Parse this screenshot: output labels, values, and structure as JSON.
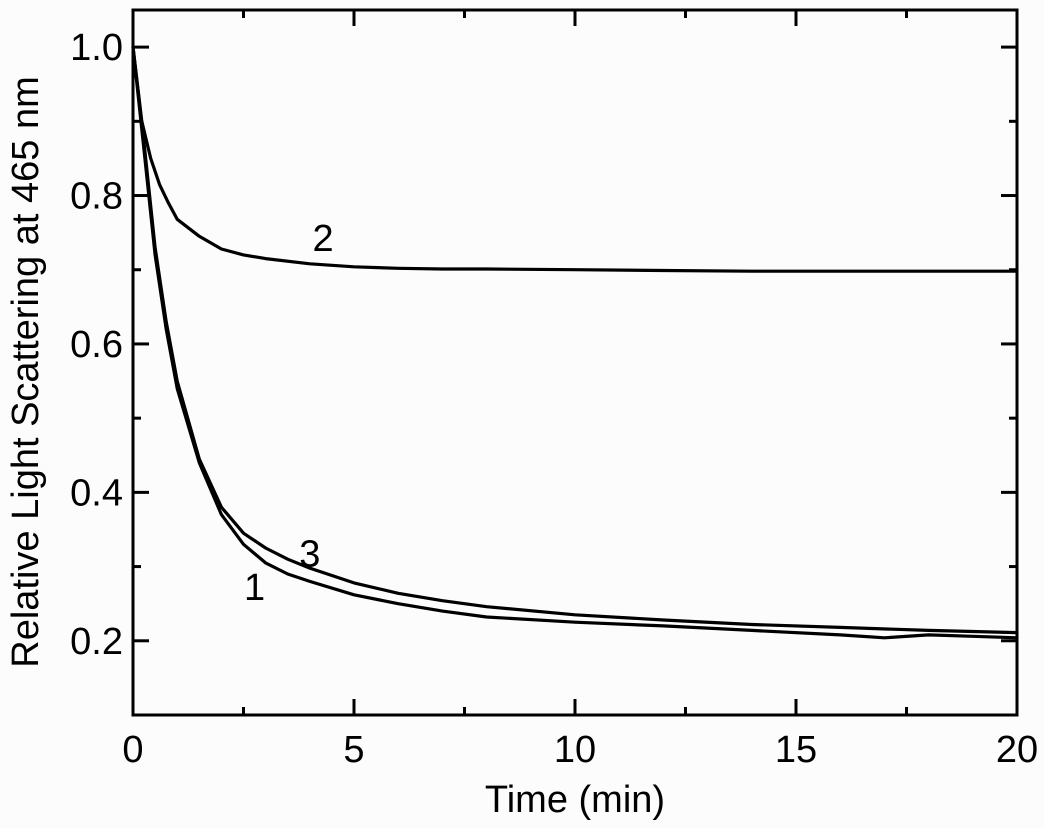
{
  "chart_data": {
    "type": "line",
    "xlabel": "Time (min)",
    "ylabel": "Relative  Light Scattering at 465 nm",
    "xlim": [
      0,
      20
    ],
    "ylim": [
      0.1,
      1.05
    ],
    "xticks": [
      0,
      5,
      10,
      15,
      20
    ],
    "xtick_labels": [
      "0",
      "5",
      "10",
      "15",
      "20"
    ],
    "yticks": [
      0.2,
      0.4,
      0.6,
      0.8,
      1.0
    ],
    "ytick_labels": [
      "0.2",
      "0.4",
      "0.6",
      "0.8",
      "1.0"
    ],
    "grid": false,
    "legend": "none",
    "series": [
      {
        "label": "1",
        "label_at": [
          2.75,
          0.255
        ],
        "x": [
          0,
          0.25,
          0.5,
          0.75,
          1.0,
          1.5,
          2.0,
          2.5,
          3.0,
          3.5,
          4.0,
          5.0,
          6.0,
          7.0,
          8.0,
          10.0,
          12.0,
          14.0,
          16.0,
          17.0,
          18.0,
          19.0,
          20.0
        ],
        "y": [
          1.0,
          0.86,
          0.72,
          0.62,
          0.54,
          0.44,
          0.37,
          0.33,
          0.305,
          0.29,
          0.28,
          0.262,
          0.25,
          0.24,
          0.232,
          0.225,
          0.22,
          0.214,
          0.208,
          0.204,
          0.208,
          0.206,
          0.204
        ]
      },
      {
        "label": "2",
        "label_at": [
          4.3,
          0.725
        ],
        "x": [
          0,
          0.2,
          0.4,
          0.6,
          0.8,
          1.0,
          1.5,
          2.0,
          2.5,
          3.0,
          4.0,
          5.0,
          6.0,
          7.0,
          8.0,
          10.0,
          12.0,
          14.0,
          16.0,
          18.0,
          20.0
        ],
        "y": [
          1.0,
          0.9,
          0.85,
          0.815,
          0.79,
          0.768,
          0.745,
          0.728,
          0.72,
          0.715,
          0.708,
          0.704,
          0.702,
          0.701,
          0.701,
          0.7,
          0.699,
          0.698,
          0.698,
          0.698,
          0.698
        ]
      },
      {
        "label": "3",
        "label_at": [
          4.0,
          0.3
        ],
        "x": [
          0,
          0.25,
          0.5,
          0.75,
          1.0,
          1.5,
          2.0,
          2.5,
          3.0,
          3.5,
          4.0,
          5.0,
          6.0,
          7.0,
          8.0,
          10.0,
          12.0,
          14.0,
          16.0,
          18.0,
          20.0
        ],
        "y": [
          1.0,
          0.87,
          0.73,
          0.63,
          0.55,
          0.445,
          0.38,
          0.345,
          0.325,
          0.31,
          0.298,
          0.278,
          0.264,
          0.254,
          0.246,
          0.235,
          0.228,
          0.222,
          0.218,
          0.214,
          0.211
        ]
      }
    ]
  }
}
